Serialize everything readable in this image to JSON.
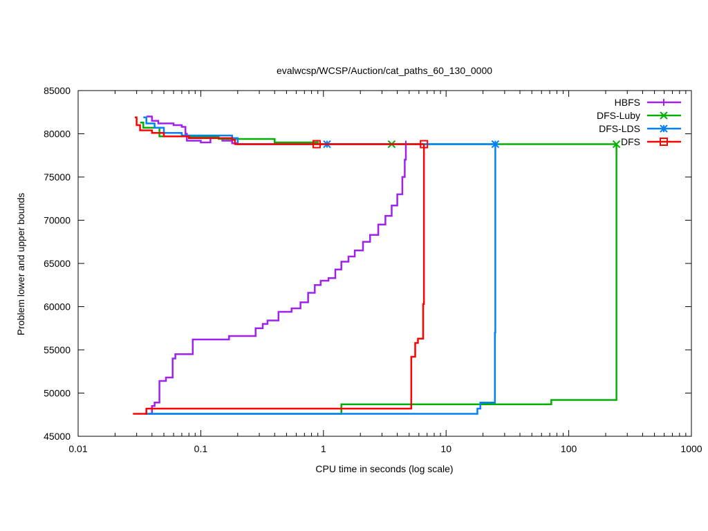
{
  "chart_data": {
    "type": "line",
    "title": "evalwcsp/WCSP/Auction/cat_paths_60_130_0000",
    "xlabel": "CPU time in seconds (log scale)",
    "ylabel": "Problem lower and upper bounds",
    "x_scale": "log",
    "xlim": [
      0.01,
      1000
    ],
    "ylim": [
      45000,
      85000
    ],
    "x_ticks": [
      0.01,
      0.1,
      1,
      10,
      100,
      1000
    ],
    "x_tick_labels": [
      "0.01",
      "0.1",
      "1",
      "10",
      "100",
      "1000"
    ],
    "y_ticks": [
      45000,
      50000,
      55000,
      60000,
      65000,
      70000,
      75000,
      80000,
      85000
    ],
    "y_tick_labels": [
      "45000",
      "50000",
      "55000",
      "60000",
      "65000",
      "70000",
      "75000",
      "80000",
      "85000"
    ],
    "grid": false,
    "legend_position": "top-right",
    "series": [
      {
        "name": "HBFS",
        "color": "#a020f0",
        "marker": "plus",
        "upper": [
          [
            0.036,
            82000
          ],
          [
            0.04,
            81500
          ],
          [
            0.045,
            81200
          ],
          [
            0.06,
            81000
          ],
          [
            0.07,
            80800
          ],
          [
            0.075,
            80000
          ],
          [
            0.077,
            79200
          ],
          [
            0.1,
            79000
          ],
          [
            0.12,
            79500
          ],
          [
            0.15,
            79200
          ],
          [
            0.18,
            78900
          ],
          [
            0.2,
            78800
          ],
          [
            0.6,
            78800
          ],
          [
            0.9,
            78800
          ],
          [
            4.7,
            78800
          ]
        ],
        "lower": [
          [
            0.038,
            47600
          ],
          [
            0.04,
            48500
          ],
          [
            0.042,
            48900
          ],
          [
            0.046,
            51400
          ],
          [
            0.052,
            51800
          ],
          [
            0.059,
            54000
          ],
          [
            0.062,
            54500
          ],
          [
            0.086,
            56200
          ],
          [
            0.17,
            56600
          ],
          [
            0.28,
            57500
          ],
          [
            0.32,
            58000
          ],
          [
            0.35,
            58400
          ],
          [
            0.43,
            59400
          ],
          [
            0.55,
            59800
          ],
          [
            0.65,
            60500
          ],
          [
            0.75,
            61600
          ],
          [
            0.85,
            62500
          ],
          [
            0.95,
            63000
          ],
          [
            1.1,
            63300
          ],
          [
            1.25,
            64300
          ],
          [
            1.4,
            65200
          ],
          [
            1.6,
            65800
          ],
          [
            1.8,
            66500
          ],
          [
            2.1,
            67500
          ],
          [
            2.4,
            68300
          ],
          [
            2.8,
            69500
          ],
          [
            3.2,
            70500
          ],
          [
            3.6,
            71700
          ],
          [
            4.0,
            73000
          ],
          [
            4.4,
            75000
          ],
          [
            4.6,
            77000
          ],
          [
            4.7,
            78800
          ]
        ],
        "end_marker": [
          4.7,
          78800
        ]
      },
      {
        "name": "DFS-Luby",
        "color": "#00b000",
        "marker": "x",
        "upper": [
          [
            0.032,
            81300
          ],
          [
            0.034,
            80700
          ],
          [
            0.046,
            79700
          ],
          [
            0.14,
            79400
          ],
          [
            0.4,
            79000
          ],
          [
            0.9,
            78800
          ],
          [
            3.6,
            78800
          ],
          [
            240,
            78800
          ]
        ],
        "lower": [
          [
            0.035,
            47600
          ],
          [
            1.4,
            48700
          ],
          [
            72,
            49200
          ],
          [
            245,
            49200
          ],
          [
            245,
            78800
          ]
        ],
        "end_marker": [
          245,
          78800
        ],
        "markers": [
          [
            3.6,
            78800
          ]
        ]
      },
      {
        "name": "DFS-LDS",
        "color": "#0080ff",
        "marker": "star",
        "upper": [
          [
            0.034,
            81900
          ],
          [
            0.036,
            81200
          ],
          [
            0.042,
            80700
          ],
          [
            0.05,
            80100
          ],
          [
            0.07,
            79800
          ],
          [
            0.18,
            79500
          ],
          [
            0.2,
            78800
          ],
          [
            1.07,
            78800
          ],
          [
            25,
            78800
          ]
        ],
        "lower": [
          [
            0.035,
            47600
          ],
          [
            18,
            48200
          ],
          [
            19,
            48900
          ],
          [
            25,
            48900
          ],
          [
            25,
            57000
          ],
          [
            25.2,
            78800
          ]
        ],
        "end_marker": [
          25.2,
          78800
        ],
        "markers": [
          [
            1.07,
            78800
          ]
        ]
      },
      {
        "name": "DFS",
        "color": "#ff0000",
        "marker": "square",
        "upper": [
          [
            0.029,
            81900
          ],
          [
            0.03,
            81000
          ],
          [
            0.032,
            80400
          ],
          [
            0.04,
            80100
          ],
          [
            0.05,
            79700
          ],
          [
            0.08,
            79500
          ],
          [
            0.18,
            79300
          ],
          [
            0.19,
            78800
          ],
          [
            0.88,
            78800
          ],
          [
            6.6,
            78800
          ]
        ],
        "lower": [
          [
            0.028,
            47600
          ],
          [
            0.036,
            48200
          ],
          [
            5.2,
            48200
          ],
          [
            5.2,
            54200
          ],
          [
            5.6,
            55800
          ],
          [
            5.9,
            56300
          ],
          [
            6.5,
            60300
          ],
          [
            6.6,
            78800
          ]
        ],
        "end_marker": [
          6.6,
          78800
        ],
        "markers": [
          [
            0.88,
            78800
          ]
        ]
      }
    ]
  }
}
